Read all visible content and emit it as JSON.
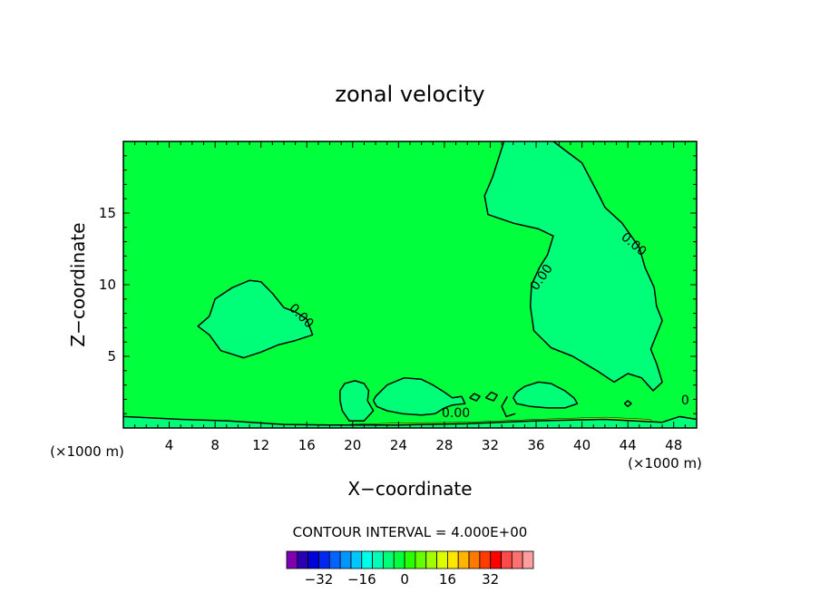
{
  "chart_data": {
    "type": "contour",
    "title": "zonal velocity",
    "xlabel": "X−coordinate",
    "ylabel": "Z−coordinate",
    "x_unit_left": "(×1000 m)",
    "x_unit_right": "(×1000 m)",
    "xlim": [
      0,
      50
    ],
    "ylim": [
      0,
      20
    ],
    "x_ticks": [
      4,
      8,
      12,
      16,
      20,
      24,
      28,
      32,
      36,
      40,
      44,
      48
    ],
    "y_ticks": [
      5,
      10,
      15
    ],
    "contour_interval_text": "CONTOUR INTERVAL = 4.000E+00",
    "contour_labels": [
      {
        "text": "0.00",
        "x": 15.5,
        "z": 7.8
      },
      {
        "text": "0.00",
        "x": 36.5,
        "z": 10.5
      },
      {
        "text": "0.00",
        "x": 44.5,
        "z": 12.8
      },
      {
        "text": "0.00",
        "x": 29.0,
        "z": 1.0
      },
      {
        "text": "0",
        "x": 49.0,
        "z": 1.9
      }
    ],
    "regions": [
      {
        "label": "negative",
        "points": [
          [
            7.5,
            7.8
          ],
          [
            8,
            9
          ],
          [
            9.5,
            9.8
          ],
          [
            11,
            10.3
          ],
          [
            12,
            10.2
          ],
          [
            13,
            9.4
          ],
          [
            14,
            8.4
          ],
          [
            15,
            8.1
          ],
          [
            16,
            7.6
          ],
          [
            16.5,
            6.5
          ],
          [
            15,
            6.1
          ],
          [
            13.5,
            5.8
          ],
          [
            12,
            5.3
          ],
          [
            10.5,
            4.9
          ],
          [
            8.5,
            5.4
          ],
          [
            7.5,
            6.5
          ],
          [
            6.5,
            7.1
          ]
        ]
      },
      {
        "label": "negative",
        "points": [
          [
            33.2,
            20
          ],
          [
            37.5,
            20
          ],
          [
            40,
            18.5
          ],
          [
            41.5,
            16.2
          ],
          [
            42,
            15.4
          ],
          [
            43.5,
            14.3
          ],
          [
            45,
            12.6
          ],
          [
            45.5,
            11.2
          ],
          [
            46.3,
            9.8
          ],
          [
            46.5,
            8.5
          ],
          [
            47,
            7.5
          ],
          [
            46,
            5.5
          ],
          [
            46.5,
            4.5
          ],
          [
            47,
            3.2
          ],
          [
            46.2,
            2.6
          ],
          [
            45.2,
            3.5
          ],
          [
            44,
            3.8
          ],
          [
            42.8,
            3.2
          ],
          [
            41.3,
            4
          ],
          [
            39.2,
            5
          ],
          [
            37.3,
            5.6
          ],
          [
            35.8,
            6.8
          ],
          [
            35.5,
            8.5
          ],
          [
            35.6,
            10
          ],
          [
            36.3,
            11.2
          ],
          [
            37,
            12.1
          ],
          [
            37.5,
            13.4
          ],
          [
            36.2,
            13.9
          ],
          [
            34,
            14.3
          ],
          [
            31.8,
            14.9
          ],
          [
            31.5,
            16.2
          ],
          [
            32.2,
            17.5
          ]
        ]
      },
      {
        "label": "negative",
        "points": [
          [
            18.9,
            2.6
          ],
          [
            19.3,
            3.1
          ],
          [
            20.2,
            3.3
          ],
          [
            21,
            3.1
          ],
          [
            21.4,
            2.6
          ],
          [
            21.3,
            1.9
          ],
          [
            21.8,
            1.2
          ],
          [
            21,
            0.5
          ],
          [
            19.7,
            0.5
          ],
          [
            19.1,
            1.2
          ],
          [
            18.9,
            1.9
          ]
        ]
      },
      {
        "label": "negative",
        "points": [
          [
            22,
            2.2
          ],
          [
            23,
            3
          ],
          [
            24.5,
            3.5
          ],
          [
            26,
            3.4
          ],
          [
            27,
            3
          ],
          [
            28,
            2.5
          ],
          [
            28.7,
            2.1
          ],
          [
            29.5,
            2.2
          ],
          [
            29.8,
            1.7
          ],
          [
            28.7,
            1.6
          ],
          [
            28,
            1.4
          ],
          [
            27.2,
            1
          ],
          [
            26,
            0.9
          ],
          [
            24.3,
            1
          ],
          [
            23,
            1.2
          ],
          [
            22.1,
            1.5
          ],
          [
            21.8,
            1.9
          ]
        ]
      },
      {
        "label": "negative",
        "points": [
          [
            34.3,
            2.5
          ],
          [
            35,
            2.9
          ],
          [
            36.2,
            3.2
          ],
          [
            37.3,
            3.1
          ],
          [
            38.5,
            2.6
          ],
          [
            39.3,
            2.1
          ],
          [
            39.6,
            1.7
          ],
          [
            38.5,
            1.4
          ],
          [
            37,
            1.4
          ],
          [
            35.5,
            1.5
          ],
          [
            34.3,
            1.7
          ],
          [
            34,
            2.1
          ]
        ]
      },
      {
        "label": "negative",
        "points": [
          [
            0,
            0.8
          ],
          [
            5,
            0.6
          ],
          [
            9,
            0.5
          ],
          [
            14,
            0.25
          ],
          [
            18,
            0.2
          ],
          [
            24,
            0.2
          ],
          [
            30,
            0.3
          ],
          [
            36,
            0.5
          ],
          [
            42,
            0.6
          ],
          [
            47,
            0.4
          ],
          [
            48.5,
            0.8
          ],
          [
            50,
            0.6
          ],
          [
            50,
            0
          ],
          [
            0,
            0
          ]
        ]
      }
    ],
    "contour_lines_0": [
      [
        [
          7.5,
          7.8
        ],
        [
          8,
          9
        ],
        [
          9.5,
          9.8
        ],
        [
          11,
          10.3
        ],
        [
          12,
          10.2
        ],
        [
          13,
          9.4
        ],
        [
          14,
          8.4
        ],
        [
          15,
          8.1
        ],
        [
          16,
          7.6
        ],
        [
          16.5,
          6.5
        ],
        [
          15,
          6.1
        ],
        [
          13.5,
          5.8
        ],
        [
          12,
          5.3
        ],
        [
          10.5,
          4.9
        ],
        [
          8.5,
          5.4
        ],
        [
          7.5,
          6.5
        ],
        [
          6.5,
          7.1
        ],
        [
          7.5,
          7.8
        ]
      ],
      [
        [
          33.2,
          20
        ],
        [
          32.2,
          17.5
        ],
        [
          31.5,
          16.2
        ],
        [
          31.8,
          14.9
        ],
        [
          34,
          14.3
        ],
        [
          36.2,
          13.9
        ],
        [
          37.5,
          13.4
        ],
        [
          37,
          12.1
        ],
        [
          36.3,
          11.2
        ],
        [
          35.6,
          10
        ],
        [
          35.5,
          8.5
        ],
        [
          35.8,
          6.8
        ],
        [
          37.3,
          5.6
        ],
        [
          39.2,
          5
        ],
        [
          41.3,
          4
        ],
        [
          42.8,
          3.2
        ],
        [
          44,
          3.8
        ],
        [
          45.2,
          3.5
        ],
        [
          46.2,
          2.6
        ],
        [
          47,
          3.2
        ],
        [
          46.5,
          4.5
        ],
        [
          46,
          5.5
        ],
        [
          47,
          7.5
        ],
        [
          46.5,
          8.5
        ],
        [
          46.3,
          9.8
        ],
        [
          45.5,
          11.2
        ],
        [
          45,
          12.6
        ],
        [
          43.5,
          14.3
        ],
        [
          42,
          15.4
        ],
        [
          41.5,
          16.2
        ],
        [
          40,
          18.5
        ],
        [
          37.5,
          20
        ]
      ],
      [
        [
          18.9,
          1.9
        ],
        [
          18.9,
          2.6
        ],
        [
          19.3,
          3.1
        ],
        [
          20.2,
          3.3
        ],
        [
          21,
          3.1
        ],
        [
          21.4,
          2.6
        ],
        [
          21.3,
          1.9
        ],
        [
          21.8,
          1.2
        ],
        [
          21,
          0.5
        ],
        [
          19.7,
          0.5
        ],
        [
          19.1,
          1.2
        ],
        [
          18.9,
          1.9
        ]
      ],
      [
        [
          21.8,
          1.9
        ],
        [
          22,
          2.2
        ],
        [
          23,
          3
        ],
        [
          24.5,
          3.5
        ],
        [
          26,
          3.4
        ],
        [
          27,
          3
        ],
        [
          28,
          2.5
        ],
        [
          28.7,
          2.1
        ],
        [
          29.5,
          2.2
        ],
        [
          29.8,
          1.7
        ],
        [
          28.7,
          1.6
        ],
        [
          28,
          1.4
        ],
        [
          27.2,
          1
        ],
        [
          26,
          0.9
        ],
        [
          24.3,
          1
        ],
        [
          23,
          1.2
        ],
        [
          22.1,
          1.5
        ],
        [
          21.8,
          1.9
        ]
      ],
      [
        [
          34,
          2.1
        ],
        [
          34.3,
          2.5
        ],
        [
          35,
          2.9
        ],
        [
          36.2,
          3.2
        ],
        [
          37.3,
          3.1
        ],
        [
          38.5,
          2.6
        ],
        [
          39.3,
          2.1
        ],
        [
          39.6,
          1.7
        ],
        [
          38.5,
          1.4
        ],
        [
          37,
          1.4
        ],
        [
          35.5,
          1.5
        ],
        [
          34.3,
          1.7
        ],
        [
          34,
          2.1
        ]
      ],
      [
        [
          0,
          0.8
        ],
        [
          5,
          0.6
        ],
        [
          9,
          0.5
        ],
        [
          14,
          0.25
        ],
        [
          18,
          0.2
        ],
        [
          24,
          0.2
        ],
        [
          30,
          0.3
        ],
        [
          36,
          0.5
        ],
        [
          42,
          0.6
        ],
        [
          47,
          0.4
        ],
        [
          48.5,
          0.8
        ],
        [
          50,
          0.6
        ]
      ],
      [
        [
          30.2,
          2.1
        ],
        [
          30.6,
          2.4
        ],
        [
          31.1,
          2.2
        ],
        [
          30.8,
          1.9
        ],
        [
          30.2,
          2.1
        ]
      ],
      [
        [
          31.6,
          2.1
        ],
        [
          32.1,
          2.5
        ],
        [
          32.6,
          2.3
        ],
        [
          32.3,
          1.9
        ],
        [
          31.6,
          2.1
        ]
      ],
      [
        [
          33.5,
          2.2
        ],
        [
          33,
          1.5
        ],
        [
          33.4,
          0.8
        ],
        [
          34.2,
          1.0
        ]
      ],
      [
        [
          43.7,
          1.7
        ],
        [
          44,
          1.9
        ],
        [
          44.3,
          1.7
        ],
        [
          44,
          1.5
        ],
        [
          43.7,
          1.7
        ]
      ]
    ],
    "colorbar": {
      "colors": [
        "#7f00b0",
        "#2a00b0",
        "#0000d8",
        "#0028f0",
        "#0064ff",
        "#0096ff",
        "#00c8ff",
        "#00ffe6",
        "#00ffb4",
        "#00ff78",
        "#00ff3c",
        "#28ff00",
        "#64ff00",
        "#a0ff00",
        "#dcff00",
        "#ffe600",
        "#ffb400",
        "#ff7800",
        "#ff3c00",
        "#ff0000",
        "#ff4a4a",
        "#ff7070",
        "#ff9e9e"
      ],
      "tick_labels": [
        "−32",
        "−16",
        "0",
        "16",
        "32"
      ],
      "tick_values": [
        -32,
        -16,
        0,
        16,
        32
      ],
      "vmin": -44,
      "vmax": 48
    },
    "fill_colors": {
      "background": "#00ff3c",
      "negative": "#00ff78",
      "line": "#000000",
      "bottom_positive": "#64ff00"
    }
  }
}
